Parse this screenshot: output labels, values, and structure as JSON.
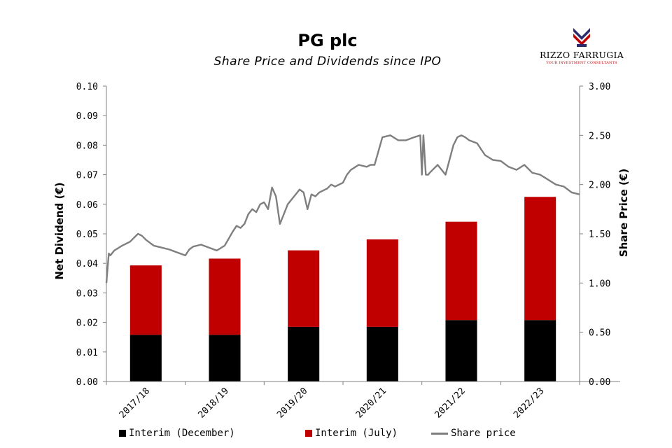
{
  "chart_data": {
    "type": "bar",
    "title": "PG plc",
    "subtitle": "Share Price and Dividends since IPO",
    "categories": [
      "2017/18",
      "2018/19",
      "2019/20",
      "2020/21",
      "2021/22",
      "2022/23"
    ],
    "series": [
      {
        "name": "Interim (December)",
        "type": "bar",
        "stack": "dividend",
        "axis": "left",
        "color": "#000000",
        "values": [
          0.0158,
          0.0158,
          0.0185,
          0.0185,
          0.0208,
          0.0208
        ]
      },
      {
        "name": "Interim (July)",
        "type": "bar",
        "stack": "dividend",
        "axis": "left",
        "color": "#c00000",
        "values": [
          0.0235,
          0.0258,
          0.0259,
          0.0296,
          0.0333,
          0.0417
        ]
      },
      {
        "name": "Share price",
        "type": "line",
        "axis": "right",
        "color": "#7f7f7f",
        "x": [
          0.0,
          0.03,
          0.05,
          0.1,
          0.2,
          0.3,
          0.4,
          0.45,
          0.5,
          0.55,
          0.6,
          0.7,
          0.8,
          0.9,
          1.0,
          1.05,
          1.1,
          1.2,
          1.3,
          1.4,
          1.5,
          1.6,
          1.65,
          1.7,
          1.75,
          1.8,
          1.85,
          1.9,
          1.95,
          2.0,
          2.05,
          2.1,
          2.15,
          2.2,
          2.3,
          2.4,
          2.45,
          2.5,
          2.55,
          2.6,
          2.65,
          2.7,
          2.75,
          2.8,
          2.85,
          2.9,
          3.0,
          3.05,
          3.1,
          3.2,
          3.3,
          3.35,
          3.4,
          3.5,
          3.6,
          3.7,
          3.8,
          3.9,
          3.98,
          4.0,
          4.02,
          4.05,
          4.08,
          4.1,
          4.2,
          4.3,
          4.4,
          4.45,
          4.5,
          4.55,
          4.6,
          4.7,
          4.8,
          4.9,
          5.0,
          5.1,
          5.2,
          5.3,
          5.4,
          5.5,
          5.6,
          5.7,
          5.8,
          5.9,
          6.0
        ],
        "values": [
          1.0,
          1.3,
          1.28,
          1.33,
          1.38,
          1.42,
          1.5,
          1.48,
          1.44,
          1.41,
          1.38,
          1.36,
          1.34,
          1.31,
          1.28,
          1.34,
          1.37,
          1.39,
          1.36,
          1.33,
          1.38,
          1.52,
          1.58,
          1.56,
          1.6,
          1.7,
          1.75,
          1.72,
          1.8,
          1.82,
          1.75,
          1.97,
          1.88,
          1.6,
          1.8,
          1.9,
          1.95,
          1.92,
          1.75,
          1.9,
          1.88,
          1.92,
          1.94,
          1.96,
          2.0,
          1.98,
          2.02,
          2.1,
          2.15,
          2.2,
          2.18,
          2.2,
          2.2,
          2.48,
          2.5,
          2.45,
          2.45,
          2.48,
          2.5,
          2.1,
          2.5,
          2.1,
          2.1,
          2.12,
          2.2,
          2.1,
          2.4,
          2.48,
          2.5,
          2.48,
          2.45,
          2.42,
          2.3,
          2.25,
          2.24,
          2.18,
          2.15,
          2.2,
          2.12,
          2.1,
          2.05,
          2.0,
          1.98,
          1.92,
          1.9
        ]
      }
    ],
    "ylabel": "Net Dividend (€)",
    "ylim": [
      0,
      0.1
    ],
    "yticks": [
      "0.00",
      "0.01",
      "0.02",
      "0.03",
      "0.04",
      "0.05",
      "0.06",
      "0.07",
      "0.08",
      "0.09",
      "0.10"
    ],
    "y2label": "Share Price (€)",
    "y2lim": [
      0,
      3
    ],
    "y2ticks": [
      "0.00",
      "0.50",
      "1.00",
      "1.50",
      "2.00",
      "2.50",
      "3.00"
    ],
    "grid": false,
    "legend_position": "bottom"
  },
  "logo": {
    "name": "RIZZO FARRUGIA",
    "tagline": "YOUR INVESTMENT CONSULTANTS"
  }
}
